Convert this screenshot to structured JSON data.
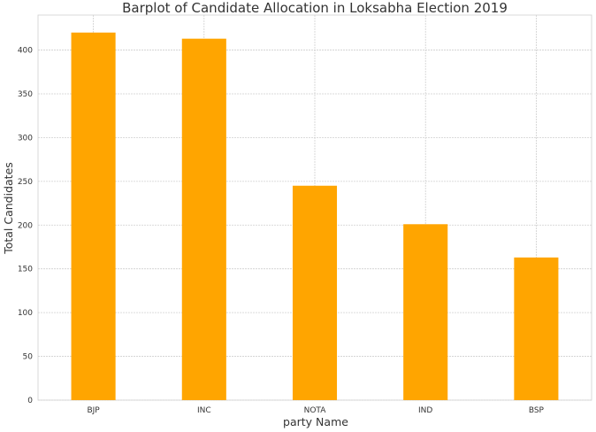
{
  "chart_data": {
    "type": "bar",
    "title": "Barplot of Candidate Allocation in Loksabha Election 2019",
    "xlabel": "party Name",
    "ylabel": "Total Candidates",
    "categories": [
      "BJP",
      "INC",
      "NOTA",
      "IND",
      "BSP"
    ],
    "values": [
      420,
      413,
      245,
      201,
      163
    ],
    "ylim": [
      0,
      440
    ],
    "yticks": [
      0,
      50,
      100,
      150,
      200,
      250,
      300,
      350,
      400
    ],
    "bar_color": "#ffa500",
    "grid": true
  }
}
